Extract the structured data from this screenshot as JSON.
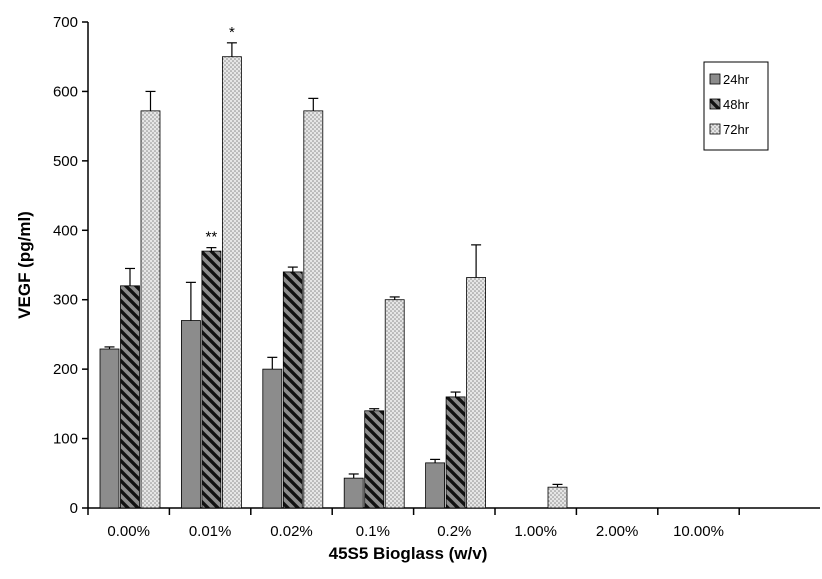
{
  "chart_data": {
    "type": "bar",
    "title": "",
    "xlabel": "45S5 Bioglass (w/v)",
    "ylabel": "VEGF (pg/ml)",
    "ylim": [
      0,
      700
    ],
    "yticks": [
      "0",
      "100",
      "200",
      "300",
      "400",
      "500",
      "600",
      "700"
    ],
    "grid": false,
    "legend_position": "top-right",
    "categories": [
      "0.00%",
      "0.01%",
      "0.02%",
      "0.1%",
      "0.2%",
      "1.00%",
      "2.00%",
      "10.00%"
    ],
    "series": [
      {
        "name": "24hr",
        "pattern": "solid-gray",
        "color": "#8c8c8c",
        "values": [
          229,
          270,
          200,
          43,
          65,
          0,
          0,
          0
        ],
        "errors": [
          3,
          55,
          17,
          6,
          5,
          0,
          0,
          0
        ]
      },
      {
        "name": "48hr",
        "pattern": "diagonal-stripes",
        "color": "#8c8c8c",
        "values": [
          320,
          370,
          340,
          140,
          160,
          0,
          0,
          0
        ],
        "errors": [
          25,
          5,
          7,
          3,
          7,
          0,
          0,
          0
        ]
      },
      {
        "name": "72hr",
        "pattern": "dotted-light",
        "color": "#d9d9d9",
        "values": [
          572,
          650,
          572,
          300,
          332,
          30,
          0,
          0
        ],
        "errors": [
          28,
          20,
          18,
          4,
          47,
          4,
          0,
          0
        ]
      }
    ],
    "annotations": [
      {
        "category": "0.01%",
        "series": "48hr",
        "text": "**"
      },
      {
        "category": "0.01%",
        "series": "72hr",
        "text": "*"
      }
    ]
  }
}
